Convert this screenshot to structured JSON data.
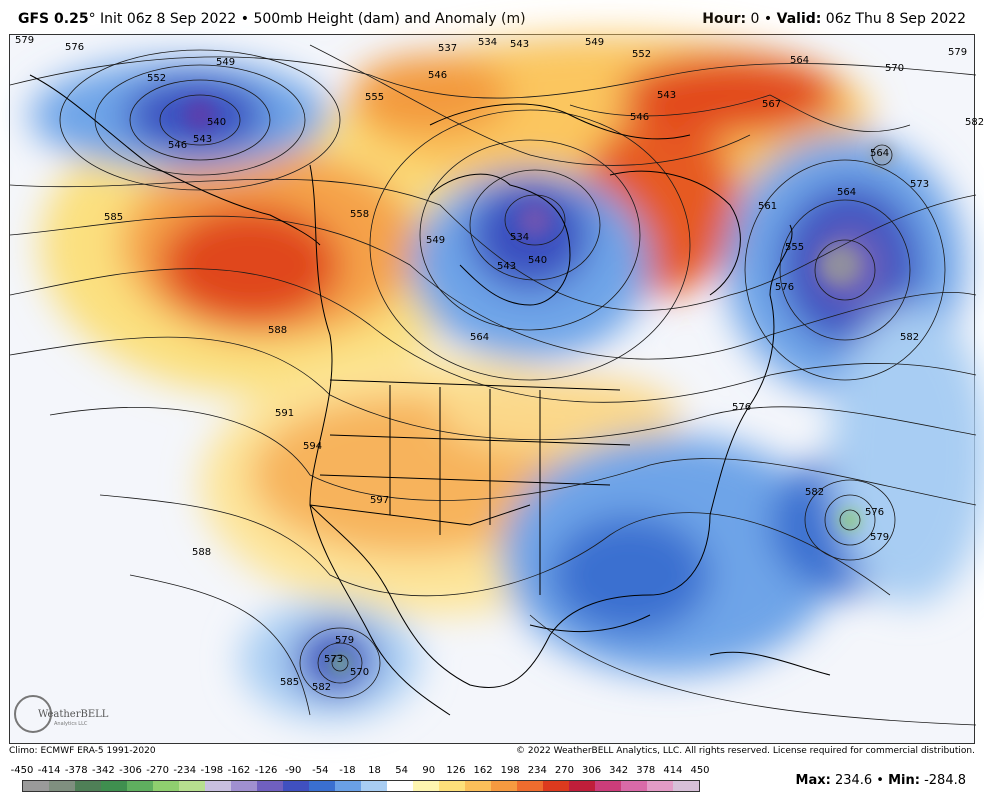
{
  "header": {
    "model": "GFS 0.25",
    "degree": "°",
    "init": " Init 06z 8 Sep 2022 • 500mb Height (dam) and Anomaly (m)",
    "hour_label": "Hour:",
    "hour_value": " 0 • ",
    "valid_label": "Valid:",
    "valid_value": " 06z Thu 8 Sep 2022"
  },
  "footer": {
    "climo": "Climo: ECMWF ERA-5 1991-2020",
    "copyright": "© 2022 WeatherBELL Analytics, LLC. All rights reserved. License required for commercial distribution."
  },
  "logo": {
    "name": "WeatherBELL",
    "tagline": "Analytics LLC"
  },
  "stats": {
    "max_label": "Max:",
    "max_value": " 234.6 • ",
    "min_label": "Min:",
    "min_value": " -284.8"
  },
  "colorbar": {
    "labels": [
      "-450",
      "-414",
      "-378",
      "-342",
      "-306",
      "-270",
      "-234",
      "-198",
      "-162",
      "-126",
      "-90",
      "-54",
      "-18",
      "18",
      "54",
      "90",
      "126",
      "162",
      "198",
      "234",
      "270",
      "306",
      "342",
      "378",
      "414",
      "450"
    ],
    "colors": [
      "#9a9a9a",
      "#7f8f7f",
      "#4f7f57",
      "#3f8f4f",
      "#5faf5f",
      "#8fcf6f",
      "#b7df8f",
      "#c8c0e0",
      "#a090d0",
      "#7060c0",
      "#4050c0",
      "#3a6fd0",
      "#6aa0e6",
      "#a8cdf3",
      "#ffffff",
      "#fdf5b0",
      "#fde07a",
      "#fbbf5a",
      "#f69a40",
      "#ee6c2e",
      "#dc3a1e",
      "#c01e3a",
      "#cc3d7a",
      "#d96aa8",
      "#e39bc6",
      "#d7c0d8"
    ]
  },
  "map": {
    "contour_labels": [
      "579",
      "576",
      "552",
      "549",
      "546",
      "543",
      "540",
      "537",
      "534",
      "543",
      "549",
      "552",
      "564",
      "570",
      "579",
      "582",
      "555",
      "546",
      "543",
      "546",
      "567",
      "564",
      "561",
      "564",
      "555",
      "576",
      "573",
      "585",
      "558",
      "549",
      "534",
      "543",
      "540",
      "588",
      "591",
      "594",
      "597",
      "564",
      "582",
      "576",
      "582",
      "579",
      "576",
      "588",
      "585",
      "582",
      "579",
      "573",
      "570"
    ],
    "anomaly_features": [
      {
        "type": "trough",
        "location": "Gulf of Alaska"
      },
      {
        "type": "trough",
        "location": "Hudson Bay"
      },
      {
        "type": "trough",
        "location": "Newfoundland"
      },
      {
        "type": "trough",
        "location": "Eastern US"
      },
      {
        "type": "ridge",
        "location": "NE Pacific"
      },
      {
        "type": "ridge",
        "location": "Western US"
      },
      {
        "type": "ridge",
        "location": "Greenland"
      },
      {
        "type": "trough",
        "location": "Baja California"
      },
      {
        "type": "trough",
        "location": "Western Atlantic"
      }
    ]
  }
}
